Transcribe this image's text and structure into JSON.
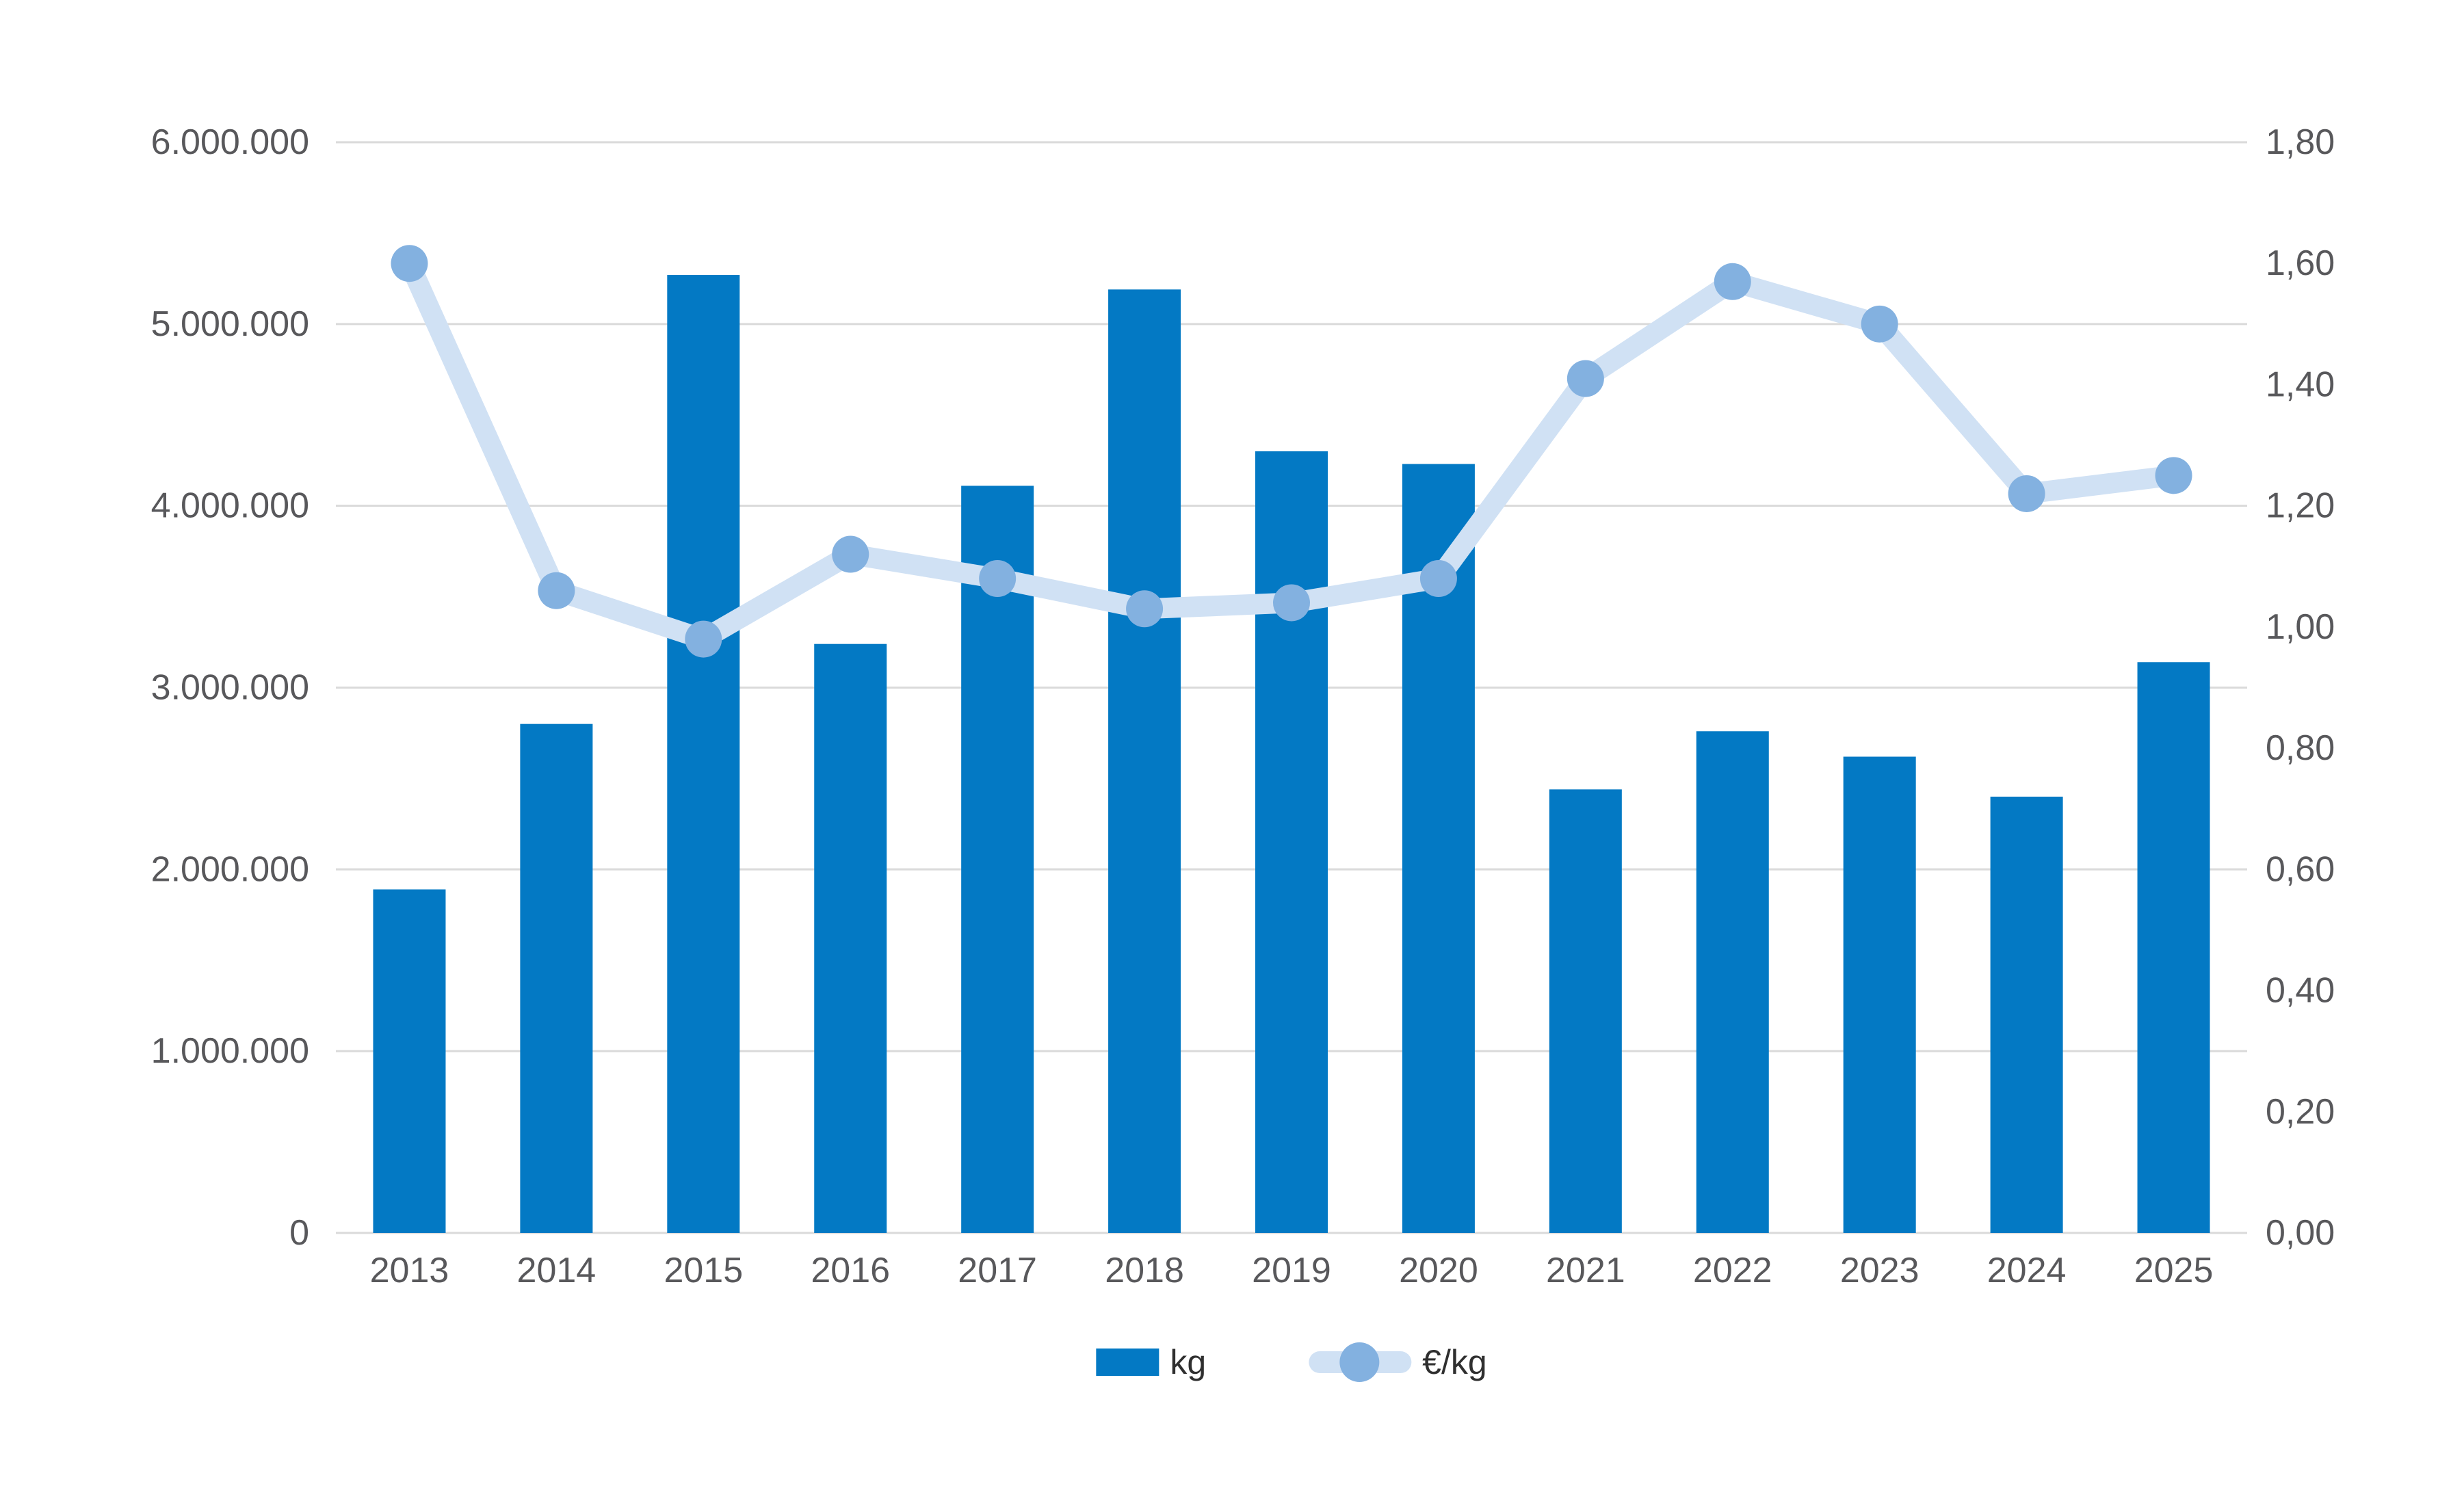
{
  "chart_data": {
    "type": "bar+line combo",
    "categories": [
      "2013",
      "2014",
      "2015",
      "2016",
      "2017",
      "2018",
      "2019",
      "2020",
      "2021",
      "2022",
      "2023",
      "2024",
      "2025"
    ],
    "series": [
      {
        "name": "kg",
        "type": "bar",
        "axis": "left",
        "values": [
          1890000,
          2800000,
          5270000,
          3240000,
          4110000,
          5190000,
          4300000,
          4230000,
          2440000,
          2760000,
          2620000,
          2400000,
          3140000
        ]
      },
      {
        "name": "€/kg",
        "type": "line",
        "axis": "right",
        "values": [
          1.6,
          1.06,
          0.98,
          1.12,
          1.08,
          1.03,
          1.04,
          1.08,
          1.41,
          1.57,
          1.5,
          1.22,
          1.25
        ]
      }
    ],
    "left_axis": {
      "min": 0,
      "max": 6000000,
      "tick_step": 1000000,
      "tick_labels": [
        "0",
        "1.000.000",
        "2.000.000",
        "3.000.000",
        "4.000.000",
        "5.000.000",
        "6.000.000"
      ]
    },
    "right_axis": {
      "min": 0,
      "max": 1.8,
      "tick_step": 0.2,
      "tick_labels": [
        "0,00",
        "0,20",
        "0,40",
        "0,60",
        "0,80",
        "1,00",
        "1,20",
        "1,40",
        "1,60",
        "1,80"
      ]
    },
    "grid": "horizontal gridlines at left-axis ticks",
    "legend_position": "bottom center",
    "title": ""
  },
  "legend": {
    "items": [
      {
        "label": "kg"
      },
      {
        "label": "€/kg"
      }
    ]
  },
  "colors": {
    "bar": "#0379c4",
    "line": "#d0e1f4",
    "marker": "#83b1e0",
    "grid": "#dadada",
    "axis_text": "#58585b",
    "legend_text": "#2f2f2f",
    "background": "#ffffff"
  }
}
